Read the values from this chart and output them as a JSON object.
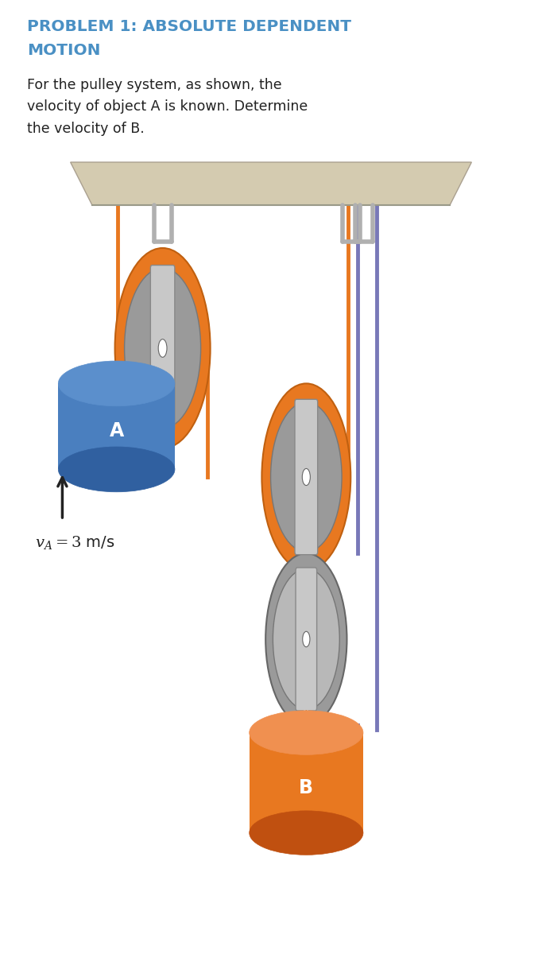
{
  "title_line1": "PROBLEM 1: ABSOLUTE DEPENDENT",
  "title_line2": "MOTION",
  "title_color": "#4a90c4",
  "body_text": "For the pulley system, as shown, the\nvelocity of object A is known. Determine\nthe velocity of B.",
  "body_color": "#222222",
  "bg_color": "#ffffff",
  "ceiling_color": "#d4cbb0",
  "ceiling_edge_color": "#aaa090",
  "pulley_orange_rim": "#e87820",
  "pulley_gray_body": "#9a9a9a",
  "pulley_gray_light": "#b8b8b8",
  "axle_color": "#c8c8c8",
  "axle_edge": "#888888",
  "hook_color": "#b0b0b0",
  "rope_orange": "#e87820",
  "rope_purple": "#7878b8",
  "object_A_color": "#4a7fbf",
  "object_A_top": "#5b8fcc",
  "object_A_bot": "#3060a0",
  "object_B_color": "#e87820",
  "object_B_top": "#f09050",
  "object_B_bot": "#c05010",
  "hook_A_color": "#5577bb",
  "hook_B_color": "#cc8844",
  "label_color": "#ffffff",
  "arrow_color": "#222222",
  "velocity_label": "$v_A = 3$ m/s",
  "p1x": 0.3,
  "p1y": 0.635,
  "p2x": 0.565,
  "p2y": 0.5,
  "p3x": 0.565,
  "p3y": 0.33
}
